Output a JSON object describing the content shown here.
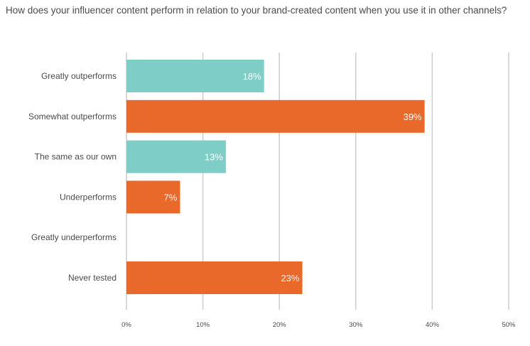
{
  "title": "How does your influencer content perform in relation to your brand-created content when you use it in other channels?",
  "chart_data": {
    "type": "bar",
    "orientation": "horizontal",
    "categories": [
      "Greatly outperforms",
      "Somewhat outperforms",
      "The same as our own",
      "Underperforms",
      "Greatly underperforms",
      "Never tested"
    ],
    "values": [
      18,
      39,
      13,
      7,
      0,
      23
    ],
    "value_labels": [
      "18%",
      "39%",
      "13%",
      "7%",
      "",
      "23%"
    ],
    "bar_colors": [
      "#7fcdc7",
      "#e8692a",
      "#7fcdc7",
      "#e8692a",
      "#7fcdc7",
      "#e8692a"
    ],
    "xlim": [
      0,
      50
    ],
    "xticks": [
      0,
      10,
      20,
      30,
      40,
      50
    ],
    "xtick_labels": [
      "0%",
      "10%",
      "20%",
      "30%",
      "40%",
      "50%"
    ],
    "grid": true,
    "legend": "none"
  }
}
